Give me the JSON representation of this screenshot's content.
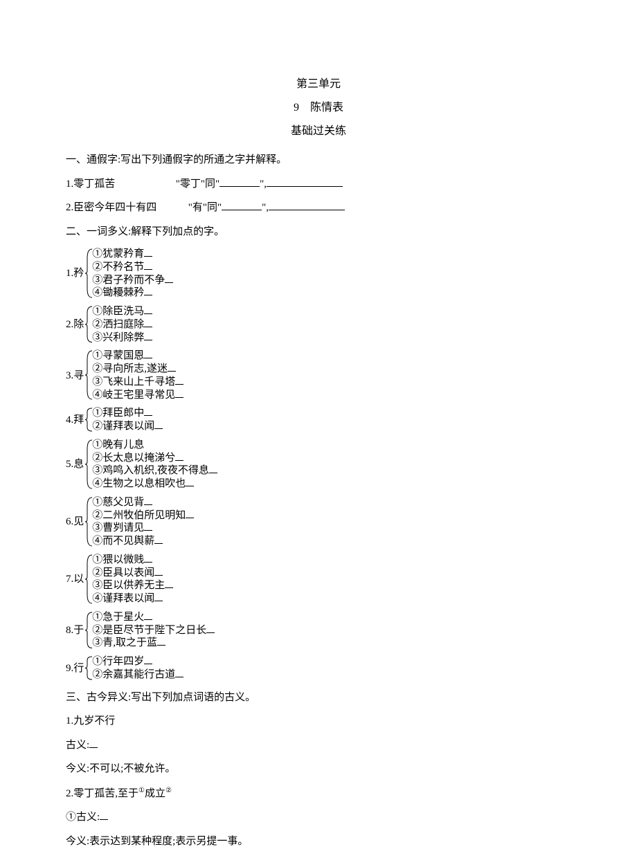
{
  "header": {
    "unit": "第三单元",
    "chapter": "9　陈情表",
    "section": "基础过关练"
  },
  "s1": {
    "heading": "一、通假字:写出下列通假字的所通之字并解释。",
    "q1_a": "1.零丁孤苦",
    "q1_b": "\"零丁\"同\"",
    "q1_c": "\",",
    "q2_a": "2.臣密今年四十有四",
    "q2_b": "\"有\"同\"",
    "q2_c": "\","
  },
  "s2": {
    "heading": "二、一词多义:解释下列加点的字。",
    "groups": [
      {
        "label": "1.矜",
        "items": [
          "①犹蒙矜育",
          "②不矜名节",
          "③君子矜而不争",
          "④锄耰棘矜"
        ]
      },
      {
        "label": "2.除",
        "items": [
          "①除臣洗马",
          "②洒扫庭除",
          "③兴利除弊"
        ]
      },
      {
        "label": "3.寻",
        "items": [
          "①寻蒙国恩",
          "②寻向所志,遂迷",
          "③飞来山上千寻塔",
          "④岐王宅里寻常见"
        ]
      },
      {
        "label": "4.拜",
        "items": [
          "①拜臣郎中",
          "②谨拜表以闻"
        ]
      },
      {
        "label": "5.息",
        "items": [
          "①晚有儿息",
          "②长太息以掩涕兮",
          "③鸡鸣入机织,夜夜不得息",
          "④生物之以息相吹也"
        ]
      },
      {
        "label": "6.见",
        "items": [
          "①慈父见背",
          "②二州牧伯所见明知",
          "③曹刿请见",
          "④而不见舆薪"
        ]
      },
      {
        "label": "7.以",
        "items": [
          "①猥以微贱",
          "②臣具以表闻",
          "③臣以供养无主",
          "④谨拜表以闻"
        ]
      },
      {
        "label": "8.于",
        "items": [
          "①急于星火",
          "②是臣尽节于陛下之日长",
          "③青,取之于蓝"
        ]
      },
      {
        "label": "9.行",
        "items": [
          "①行年四岁",
          "②余嘉其能行古道"
        ]
      }
    ]
  },
  "s3": {
    "heading": "三、古今异义:写出下列加点词语的古义。",
    "q1_title": "1.九岁不行",
    "q1_gu": "古义:",
    "q1_jin": "今义:不可以;不被允许。",
    "q2_title_a": "2.零丁孤苦,至于",
    "q2_title_b": "成立",
    "q2_gu": "①古义:",
    "q2_jin": "今义:表示达到某种程度;表示另提一事。"
  }
}
